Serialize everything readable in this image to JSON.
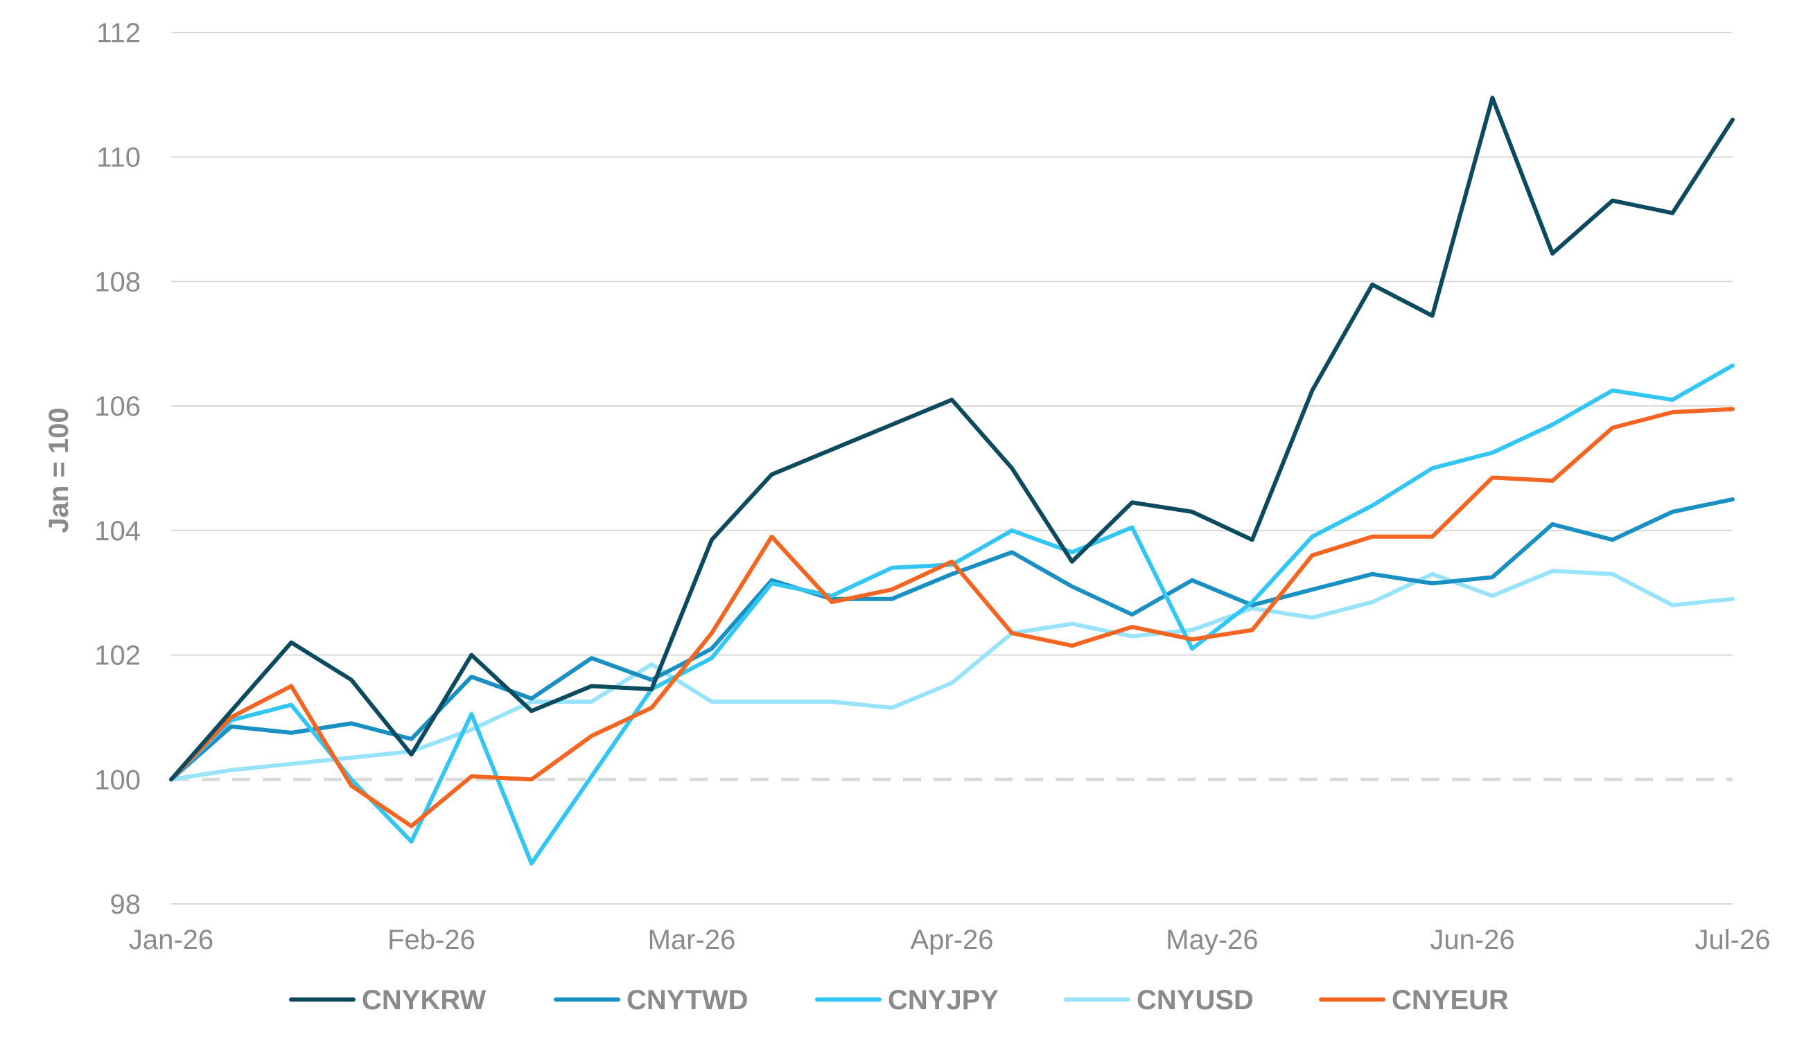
{
  "chart_data": {
    "type": "line",
    "ylabel": "Jan = 100",
    "xlabel": "",
    "ylim": [
      98,
      112
    ],
    "yticks": [
      98,
      100,
      102,
      104,
      106,
      108,
      110,
      112
    ],
    "xtick_labels": [
      "Jan-26",
      "Feb-26",
      "Mar-26",
      "Apr-26",
      "May-26",
      "Jun-26",
      "Jul-26"
    ],
    "grid": true,
    "baseline": 100,
    "legend_position": "bottom",
    "series": [
      {
        "name": "CNYKRW",
        "color": "#0d4a5e",
        "values": [
          100.0,
          101.1,
          102.2,
          101.6,
          100.4,
          102.0,
          101.1,
          101.5,
          101.45,
          103.85,
          104.9,
          105.3,
          105.7,
          106.1,
          105.0,
          103.5,
          104.45,
          104.3,
          103.85,
          106.25,
          107.95,
          107.45,
          110.95,
          108.45,
          109.3,
          109.1,
          110.6
        ]
      },
      {
        "name": "CNYTWD",
        "color": "#1a8fc1",
        "values": [
          100.0,
          100.85,
          100.75,
          100.9,
          100.65,
          101.65,
          101.3,
          101.95,
          101.6,
          102.1,
          103.2,
          102.9,
          102.9,
          103.3,
          103.65,
          103.1,
          102.65,
          103.2,
          102.8,
          103.05,
          103.3,
          103.15,
          103.25,
          104.1,
          103.85,
          104.3,
          104.5
        ]
      },
      {
        "name": "CNYJPY",
        "color": "#33c6f2",
        "values": [
          100.0,
          100.95,
          101.2,
          100.0,
          99.0,
          101.05,
          98.65,
          100.05,
          101.45,
          101.95,
          103.15,
          102.95,
          103.4,
          103.45,
          104.0,
          103.65,
          104.05,
          102.1,
          102.85,
          103.9,
          104.4,
          105.0,
          105.25,
          105.7,
          106.25,
          106.1,
          106.65
        ]
      },
      {
        "name": "CNYUSD",
        "color": "#99e3fa",
        "values": [
          100.0,
          100.15,
          100.25,
          100.35,
          100.45,
          100.8,
          101.25,
          101.25,
          101.85,
          101.25,
          101.25,
          101.25,
          101.15,
          101.55,
          102.35,
          102.5,
          102.3,
          102.4,
          102.75,
          102.6,
          102.85,
          103.3,
          102.95,
          103.35,
          103.3,
          102.8,
          102.9
        ]
      },
      {
        "name": "CNYEUR",
        "color": "#f26522",
        "values": [
          100.0,
          101.0,
          101.5,
          99.9,
          99.25,
          100.05,
          100.0,
          100.7,
          101.15,
          102.35,
          103.9,
          102.85,
          103.05,
          103.5,
          102.35,
          102.15,
          102.45,
          102.25,
          102.4,
          103.6,
          103.9,
          103.9,
          104.85,
          104.8,
          105.65,
          105.9,
          105.95
        ]
      }
    ]
  }
}
